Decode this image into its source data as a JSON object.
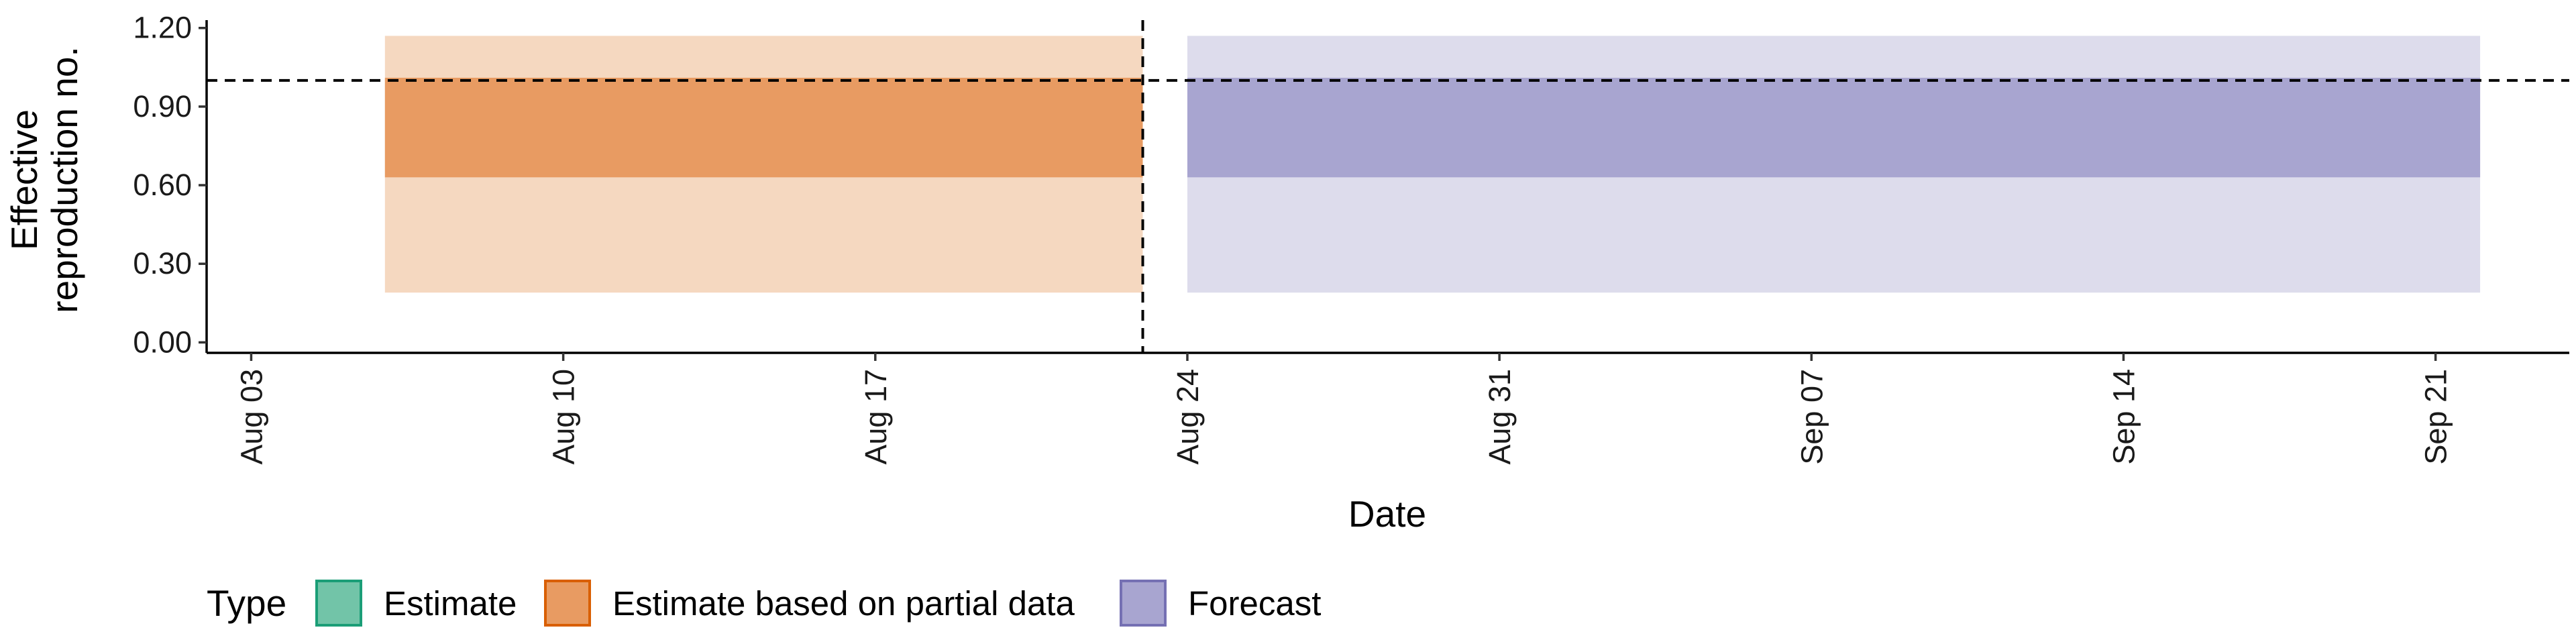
{
  "chart_data": {
    "type": "area",
    "xlabel": "Date",
    "ylabel_lines": [
      "Effective",
      "reproduction no."
    ],
    "x_range": [
      "2025-08-02",
      "2025-09-24"
    ],
    "ylim": [
      -0.04,
      1.23
    ],
    "y_ticks": [
      {
        "value": 0.0,
        "label": "0.00"
      },
      {
        "value": 0.3,
        "label": "0.30"
      },
      {
        "value": 0.6,
        "label": "0.60"
      },
      {
        "value": 0.9,
        "label": "0.90"
      },
      {
        "value": 1.2,
        "label": "1.20"
      }
    ],
    "x_ticks": [
      {
        "date": "2025-08-03",
        "label": "Aug 03"
      },
      {
        "date": "2025-08-10",
        "label": "Aug 10"
      },
      {
        "date": "2025-08-17",
        "label": "Aug 17"
      },
      {
        "date": "2025-08-24",
        "label": "Aug 24"
      },
      {
        "date": "2025-08-31",
        "label": "Aug 31"
      },
      {
        "date": "2025-09-07",
        "label": "Sep 07"
      },
      {
        "date": "2025-09-14",
        "label": "Sep 14"
      },
      {
        "date": "2025-09-21",
        "label": "Sep 21"
      }
    ],
    "reference_line_y": 1.0,
    "forecast_divider_date": "2025-08-23",
    "series": [
      {
        "name": "Estimate based on partial data",
        "start": "2025-08-06",
        "end": "2025-08-23",
        "outer": [
          0.19,
          1.17
        ],
        "inner": [
          0.63,
          1.01
        ],
        "outer_color": "#f5d8c0",
        "inner_color": "#e89b62"
      },
      {
        "name": "Forecast",
        "start": "2025-08-24",
        "end": "2025-09-22",
        "outer": [
          0.19,
          1.17
        ],
        "inner": [
          0.63,
          1.01
        ],
        "outer_color": "#dddcec",
        "inner_color": "#a8a5d0"
      }
    ],
    "legend": {
      "title": "Type",
      "position": "bottom",
      "items": [
        {
          "label": "Estimate",
          "fill": "#72c4a8",
          "stroke": "#1b9e77"
        },
        {
          "label": "Estimate based on partial data",
          "fill": "#e89b62",
          "stroke": "#d95f02"
        },
        {
          "label": "Forecast",
          "fill": "#a8a5d0",
          "stroke": "#7570b3"
        }
      ]
    }
  }
}
